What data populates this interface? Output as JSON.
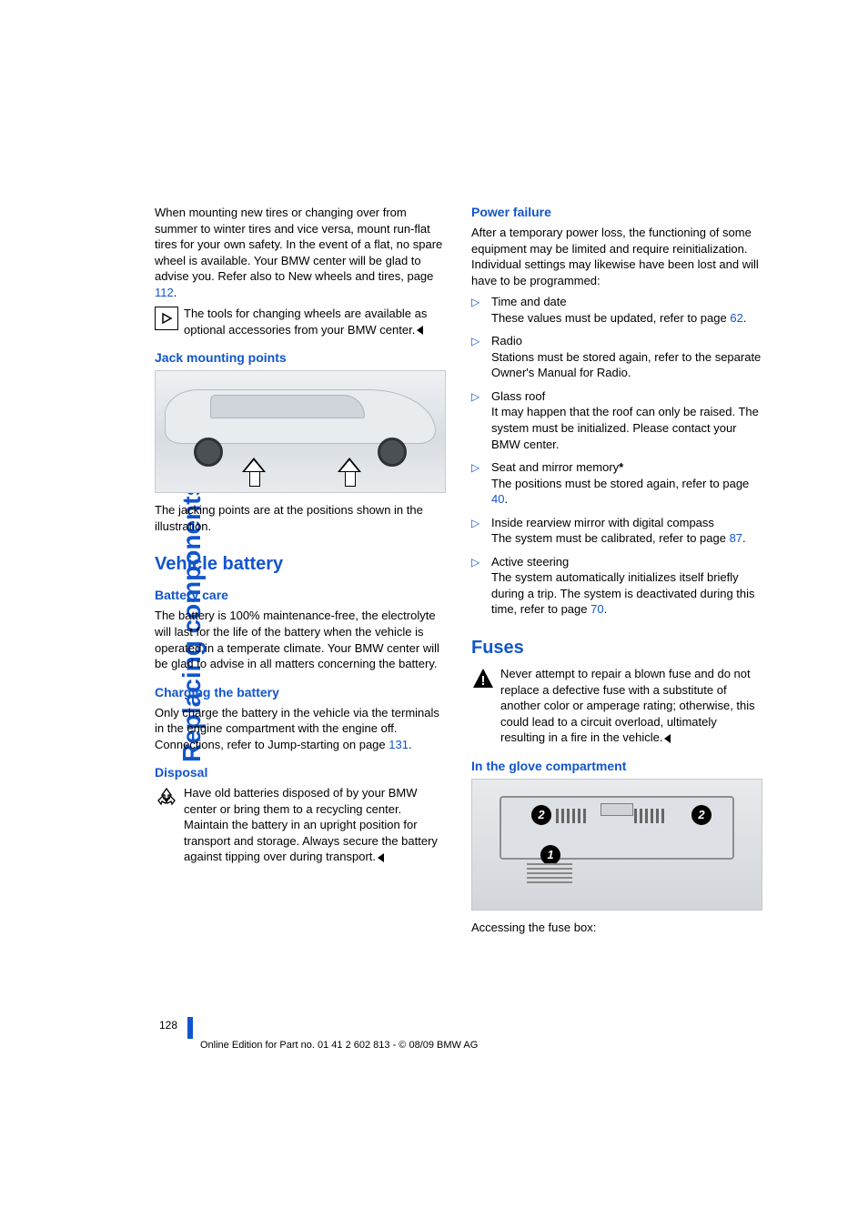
{
  "side_title": "Replacing components",
  "left": {
    "intro": "When mounting new tires or changing over from summer to winter tires and vice versa, mount run-flat tires for your own safety. In the event of a flat, no spare wheel is available. Your BMW center will be glad to advise you. Refer also to New wheels and tires, page ",
    "intro_ref": "112",
    "intro_end": ".",
    "note1_a": "The tools for changing wheels are available as optional accessories from your BMW center.",
    "h3_jack": "Jack mounting points",
    "jack_caption": "The jacking points are at the positions shown in the illustration.",
    "h2_battery": "Vehicle battery",
    "h3_care": "Battery care",
    "care_text": "The battery is 100% maintenance-free, the electrolyte will last for the life of the battery when the vehicle is operated in a temperate climate. Your BMW center will be glad to advise in all matters concerning the battery.",
    "h3_charging": "Charging the battery",
    "charging_a": "Only charge the battery in the vehicle via the terminals in the engine compartment with the engine off. Connections, refer to Jump-starting on page ",
    "charging_ref": "131",
    "charging_b": ".",
    "h3_disposal": "Disposal",
    "disposal_text": "Have old batteries disposed of by your BMW center or bring them to a recycling center. Maintain the battery in an upright position for transport and storage. Always secure the battery against tipping over during transport."
  },
  "right": {
    "h3_power": "Power failure",
    "power_intro": "After a temporary power loss, the functioning of some equipment may be limited and require reinitialization. Individual settings may likewise have been lost and will have to be programmed:",
    "bullets": [
      {
        "title": "Time and date",
        "body_a": "These values must be updated, refer to page ",
        "ref": "62",
        "body_b": "."
      },
      {
        "title": "Radio",
        "body_a": "Stations must be stored again, refer to the separate Owner's Manual for Radio.",
        "ref": "",
        "body_b": ""
      },
      {
        "title": "Glass roof",
        "body_a": "It may happen that the roof can only be raised. The system must be initialized. Please contact your BMW center.",
        "ref": "",
        "body_b": ""
      },
      {
        "title": "Seat and mirror memory",
        "star": "*",
        "body_a": "The positions must be stored again, refer to page ",
        "ref": "40",
        "body_b": "."
      },
      {
        "title": "Inside rearview mirror with digital compass",
        "body_a": "The system must be calibrated, refer to page ",
        "ref": "87",
        "body_b": "."
      },
      {
        "title": "Active steering",
        "body_a": "The system automatically initializes itself briefly during a trip. The system is deactivated during this time, refer to page ",
        "ref": "70",
        "body_b": "."
      }
    ],
    "h2_fuses": "Fuses",
    "fuses_warn": "Never attempt to repair a blown fuse and do not replace a defective fuse with a substitute of another color or amperage rating; otherwise, this could lead to a circuit overload, ultimately resulting in a fire in the vehicle.",
    "h3_glove": "In the glove compartment",
    "glove_caption": "Accessing the fuse box:"
  },
  "page_number": "128",
  "footer": "Online Edition for Part no. 01 41 2 602 813 - © 08/09 BMW AG"
}
